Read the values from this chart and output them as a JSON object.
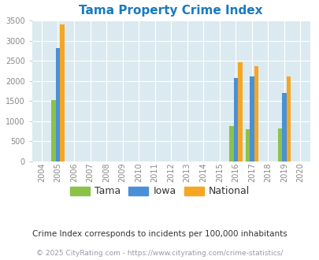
{
  "title": "Tama Property Crime Index",
  "years": [
    2004,
    2005,
    2006,
    2007,
    2008,
    2009,
    2010,
    2011,
    2012,
    2013,
    2014,
    2015,
    2016,
    2017,
    2018,
    2019,
    2020
  ],
  "tama": [
    0,
    1530,
    0,
    0,
    0,
    0,
    0,
    0,
    0,
    0,
    0,
    0,
    880,
    800,
    0,
    820,
    0
  ],
  "iowa": [
    0,
    2830,
    0,
    0,
    0,
    0,
    0,
    0,
    0,
    0,
    0,
    0,
    2080,
    2110,
    0,
    1710,
    0
  ],
  "national": [
    0,
    3410,
    0,
    0,
    0,
    0,
    0,
    0,
    0,
    0,
    0,
    0,
    2470,
    2370,
    0,
    2110,
    0
  ],
  "tama_color": "#8bc34a",
  "iowa_color": "#4a90d9",
  "national_color": "#f5a623",
  "bg_color": "#daeaf0",
  "ylim": [
    0,
    3500
  ],
  "yticks": [
    0,
    500,
    1000,
    1500,
    2000,
    2500,
    3000,
    3500
  ],
  "bar_width": 0.27,
  "subtitle": "Crime Index corresponds to incidents per 100,000 inhabitants",
  "footer": "© 2025 CityRating.com - https://www.cityrating.com/crime-statistics/",
  "legend_labels": [
    "Tama",
    "Iowa",
    "National"
  ]
}
